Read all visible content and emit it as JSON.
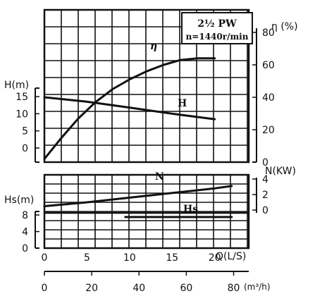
{
  "chart_data": {
    "type": "line",
    "title": "2½ PW",
    "subtitle": "n=1440r/min",
    "x_axis": {
      "label": "Q(L/S)",
      "ticks": [
        0,
        5,
        10,
        15,
        20
      ],
      "range": [
        0,
        24
      ]
    },
    "x2_axis": {
      "label": "(m³/h)",
      "ticks": [
        0,
        20,
        40,
        60,
        80
      ],
      "range": [
        0,
        86.4
      ]
    },
    "panels": [
      {
        "left_label": "H(m)",
        "left_ticks": [
          0,
          5,
          10,
          15
        ],
        "right_label": "η (%)",
        "right_ticks": [
          0,
          20,
          40,
          60,
          80
        ],
        "series": [
          {
            "name": "η",
            "axis": "right",
            "x": [
              0,
              2,
              4,
              6,
              8,
              10,
              12,
              14,
              16,
              18,
              20
            ],
            "y": [
              2,
              15,
              27,
              37,
              45,
              51,
              56,
              60,
              63,
              64,
              64
            ]
          },
          {
            "name": "H",
            "axis": "left",
            "x": [
              0,
              5,
              10,
              15,
              20
            ],
            "y": [
              14.8,
              13.5,
              11.8,
              10,
              8.4
            ]
          }
        ]
      },
      {
        "right_label": "N(KW)",
        "right_ticks": [
          0,
          2,
          4
        ],
        "series": [
          {
            "name": "N",
            "axis": "right",
            "x": [
              0,
              5,
              10,
              15,
              20,
              22
            ],
            "y": [
              0.5,
              1.0,
              1.6,
              2.2,
              2.8,
              3.1
            ]
          }
        ]
      },
      {
        "left_label": "Hs(m)",
        "left_ticks": [
          0,
          4,
          8
        ],
        "series": [
          {
            "name": "Hs",
            "axis": "left",
            "x": [
              9.5,
              22
            ],
            "y": [
              7.5,
              7.5
            ]
          }
        ]
      }
    ],
    "grid": true
  }
}
